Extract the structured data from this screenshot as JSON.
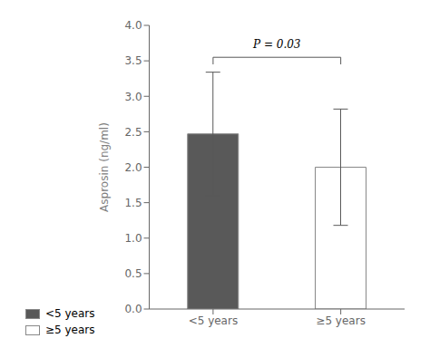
{
  "chart_data": {
    "type": "bar",
    "categories": [
      "<5 years",
      "≥5 years"
    ],
    "values": [
      2.47,
      2.0
    ],
    "errors_upper": [
      0.87,
      0.82
    ],
    "errors_lower": [
      0.87,
      0.82
    ],
    "colors": [
      "#595959",
      "#ffffff"
    ],
    "ylabel": "Asprosin (ng/ml)",
    "ylim": [
      0,
      4.0
    ],
    "yticks": [
      {
        "value": 0.0,
        "label": "0.0"
      },
      {
        "value": 0.5,
        "label": "0.5"
      },
      {
        "value": 1.0,
        "label": "1.0"
      },
      {
        "value": 1.5,
        "label": "1.5"
      },
      {
        "value": 2.0,
        "label": "2.0"
      },
      {
        "value": 2.5,
        "label": "2.5"
      },
      {
        "value": 3.0,
        "label": "3.0"
      },
      {
        "value": 3.5,
        "label": "3.5"
      },
      {
        "value": 4.0,
        "label": "4.0"
      }
    ],
    "annotations": [
      {
        "text": "P = 0.03",
        "y": 3.68,
        "bracket_y": 3.55,
        "bracket_tick_height": 0.1
      }
    ],
    "legend": "lower left",
    "grid": false
  }
}
